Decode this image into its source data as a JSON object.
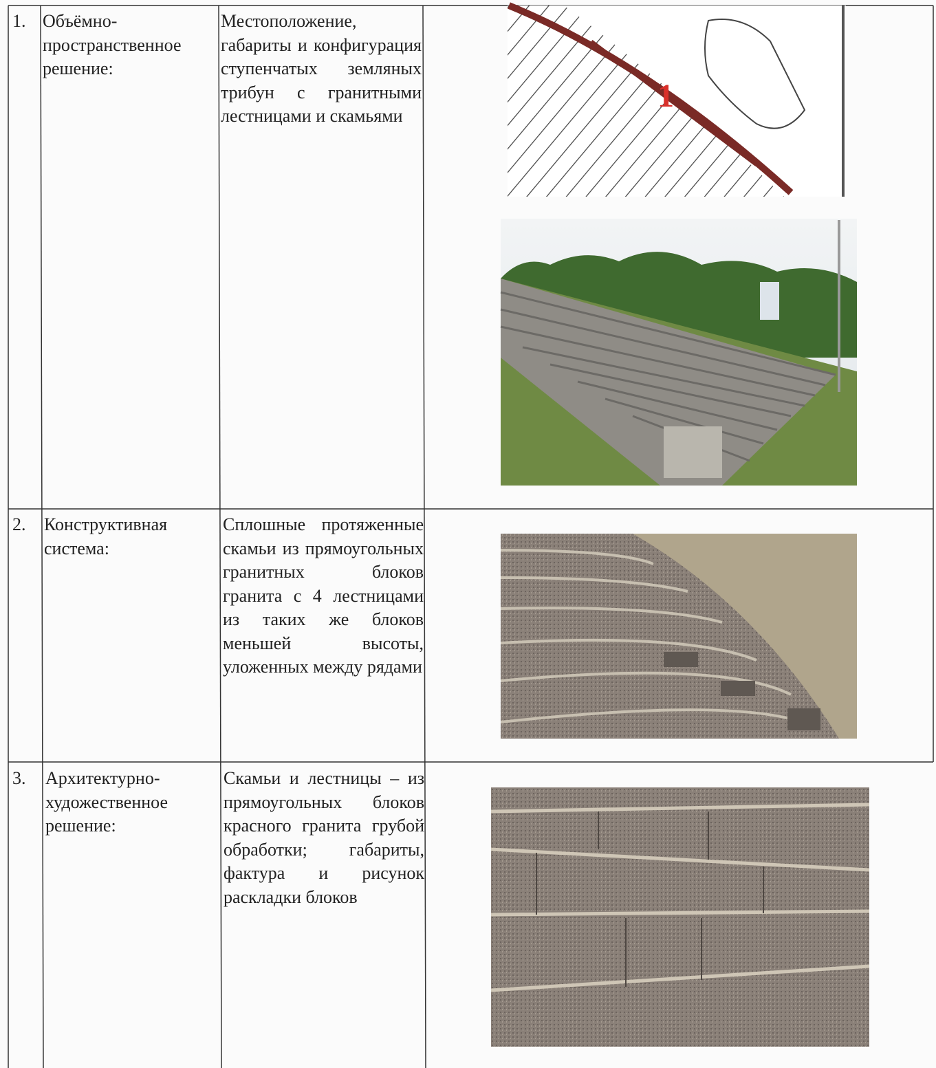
{
  "table": {
    "rows": [
      [
        "1.",
        "Объёмно-пространственное решение:",
        "Местоположение, габариты и конфигурация ступенчатых земляных трибун с гранитными лестницами и скамьями"
      ],
      [
        "2.",
        "Конструктивная система:",
        "Сплошные протяженные скамьи из прямоугольных гранитных блоков гранита с 4 лестницами из таких же блоков меньшей высоты, уложенных между рядами"
      ],
      [
        "3.",
        "Архитектурно-художественное решение:",
        "Скамьи и лестницы – из прямоугольных блоков красного гранита грубой обработки; габариты, фактура и рисунок раскладки блоков"
      ]
    ]
  },
  "map": {
    "label": "1"
  }
}
